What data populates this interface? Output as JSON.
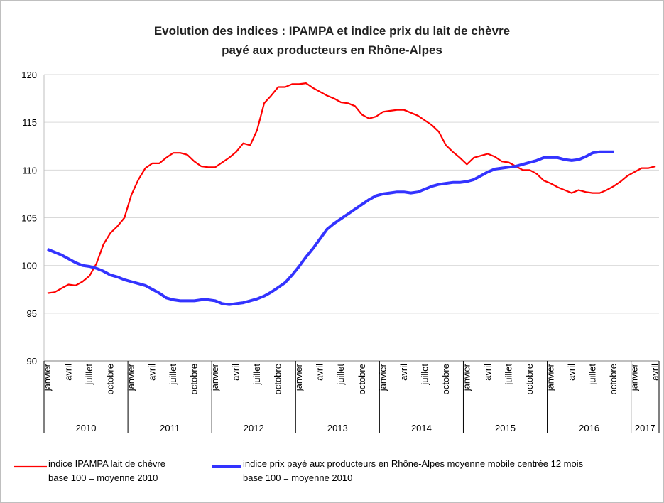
{
  "chart_data": {
    "type": "line",
    "title": "Evolution des indices : IPAMPA et indice prix du lait de chèvre\npayé aux producteurs en Rhône-Alpes",
    "categories": [
      "janvier",
      null,
      null,
      "avril",
      null,
      null,
      "juillet",
      null,
      null,
      "octobre",
      null,
      null,
      "janvier",
      null,
      null,
      "avril",
      null,
      null,
      "juillet",
      null,
      null,
      "octobre",
      null,
      null,
      "janvier",
      null,
      null,
      "avril",
      null,
      null,
      "juillet",
      null,
      null,
      "octobre",
      null,
      null,
      "janvier",
      null,
      null,
      "avril",
      null,
      null,
      "juillet",
      null,
      null,
      "octobre",
      null,
      null,
      "janvier",
      null,
      null,
      "avril",
      null,
      null,
      "juillet",
      null,
      null,
      "octobre",
      null,
      null,
      "janvier",
      null,
      null,
      "avril",
      null,
      null,
      "juillet",
      null,
      null,
      "octobre",
      null,
      null,
      "janvier",
      null,
      null,
      "avril",
      null,
      null,
      "juillet",
      null,
      null,
      "octobre",
      null,
      null,
      "janvier",
      null,
      null,
      "avril"
    ],
    "year_categories": [
      "2010",
      null,
      null,
      null,
      null,
      null,
      null,
      null,
      null,
      null,
      null,
      null,
      "2011",
      null,
      null,
      null,
      null,
      null,
      null,
      null,
      null,
      null,
      null,
      null,
      "2012",
      null,
      null,
      null,
      null,
      null,
      null,
      null,
      null,
      null,
      null,
      null,
      "2013",
      null,
      null,
      null,
      null,
      null,
      null,
      null,
      null,
      null,
      null,
      null,
      "2014",
      null,
      null,
      null,
      null,
      null,
      null,
      null,
      null,
      null,
      null,
      null,
      "2015",
      null,
      null,
      null,
      null,
      null,
      null,
      null,
      null,
      null,
      null,
      null,
      "2016",
      null,
      null,
      null,
      null,
      null,
      null,
      null,
      null,
      null,
      null,
      null,
      "2017",
      null,
      null,
      null
    ],
    "series": [
      {
        "name": "indice IPAMPA lait de chèvre\nbase 100 = moyenne 2010",
        "color": "#ff0000",
        "values": [
          97.1,
          97.2,
          97.6,
          98.0,
          97.9,
          98.3,
          98.9,
          100.2,
          102.2,
          103.4,
          104.1,
          105.0,
          107.4,
          109.0,
          110.2,
          110.7,
          110.7,
          111.3,
          111.8,
          111.8,
          111.6,
          110.9,
          110.4,
          110.3,
          110.3,
          110.8,
          111.3,
          111.9,
          112.8,
          112.6,
          114.2,
          117.0,
          117.8,
          118.7,
          118.7,
          119.0,
          119.0,
          119.1,
          118.6,
          118.2,
          117.8,
          117.5,
          117.1,
          117.0,
          116.7,
          115.8,
          115.4,
          115.6,
          116.1,
          116.2,
          116.3,
          116.3,
          116.0,
          115.7,
          115.2,
          114.7,
          114.0,
          112.6,
          111.9,
          111.3,
          110.6,
          111.3,
          111.5,
          111.7,
          111.4,
          110.9,
          110.8,
          110.4,
          110.0,
          110.0,
          109.6,
          108.9,
          108.6,
          108.2,
          107.9,
          107.6,
          107.9,
          107.7,
          107.6,
          107.6,
          107.9,
          108.3,
          108.8,
          109.4,
          109.8,
          110.2,
          110.2,
          110.4
        ]
      },
      {
        "name": "indice prix payé aux producteurs en Rhône-Alpes moyenne mobile centrée 12 mois\nbase 100 = moyenne 2010",
        "color": "#3333ff",
        "values": [
          101.7,
          101.4,
          101.1,
          100.7,
          100.3,
          100.0,
          99.9,
          99.7,
          99.4,
          99.0,
          98.8,
          98.5,
          98.3,
          98.1,
          97.9,
          97.5,
          97.1,
          96.6,
          96.4,
          96.3,
          96.3,
          96.3,
          96.4,
          96.4,
          96.3,
          96.0,
          95.9,
          96.0,
          96.1,
          96.3,
          96.5,
          96.8,
          97.2,
          97.7,
          98.2,
          99.0,
          99.9,
          100.9,
          101.8,
          102.8,
          103.8,
          104.4,
          104.9,
          105.4,
          105.9,
          106.4,
          106.9,
          107.3,
          107.5,
          107.6,
          107.7,
          107.7,
          107.6,
          107.7,
          108.0,
          108.3,
          108.5,
          108.6,
          108.7,
          108.7,
          108.8,
          109.0,
          109.4,
          109.8,
          110.1,
          110.2,
          110.3,
          110.4,
          110.6,
          110.8,
          111.0,
          111.3,
          111.3,
          111.3,
          111.1,
          111.0,
          111.1,
          111.4,
          111.8,
          111.9,
          111.9,
          111.9,
          null,
          null,
          null,
          null,
          null,
          null
        ]
      }
    ],
    "ylim": [
      90,
      120
    ],
    "yticks": [
      90,
      95,
      100,
      105,
      110,
      115,
      120
    ],
    "grid": true
  }
}
